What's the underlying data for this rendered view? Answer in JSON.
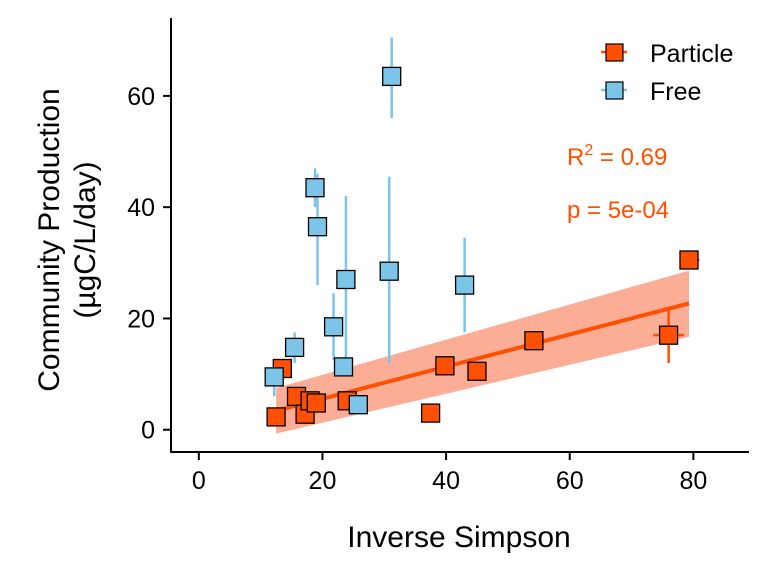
{
  "chart_data": {
    "type": "scatter",
    "xlabel": "Inverse Simpson",
    "ylabel_lines": [
      "Community Production",
      "(µgC/L/day)"
    ],
    "xlim": [
      -4.5,
      89
    ],
    "ylim": [
      -4,
      74
    ],
    "xticks": [
      0,
      20,
      40,
      60,
      80
    ],
    "yticks": [
      0,
      20,
      40,
      60
    ],
    "grid": false,
    "legend_position": "top-right",
    "colors": {
      "particle": "#FF4F00",
      "particle_band": "#FBA58A",
      "free": "#7CC5E8",
      "free_err": "#7CC5E8"
    },
    "series": [
      {
        "name": "Particle",
        "color": "#FF4F00",
        "points": [
          {
            "x": 12.5,
            "y": 2.3,
            "ylo": 2.3,
            "yhi": 2.3,
            "xlo": 12.5,
            "xhi": 12.5
          },
          {
            "x": 13.5,
            "y": 11.0,
            "ylo": 11.0,
            "yhi": 11.0,
            "xlo": 13.5,
            "xhi": 13.5
          },
          {
            "x": 15.8,
            "y": 6.0,
            "ylo": 6.0,
            "yhi": 6.0,
            "xlo": 15.8,
            "xhi": 15.8
          },
          {
            "x": 17.2,
            "y": 2.8,
            "ylo": 2.8,
            "yhi": 2.8,
            "xlo": 17.2,
            "xhi": 17.2
          },
          {
            "x": 18.0,
            "y": 5.2,
            "ylo": 5.2,
            "yhi": 5.2,
            "xlo": 18.0,
            "xhi": 18.0
          },
          {
            "x": 19.0,
            "y": 4.8,
            "ylo": 4.8,
            "yhi": 4.8,
            "xlo": 19.0,
            "xhi": 19.0
          },
          {
            "x": 24.0,
            "y": 5.2,
            "ylo": 5.2,
            "yhi": 5.2,
            "xlo": 24.0,
            "xhi": 24.0
          },
          {
            "x": 37.5,
            "y": 3.0,
            "ylo": 3.0,
            "yhi": 3.0,
            "xlo": 37.5,
            "xhi": 37.5
          },
          {
            "x": 39.8,
            "y": 11.5,
            "ylo": 11.5,
            "yhi": 11.5,
            "xlo": 39.8,
            "xhi": 39.8
          },
          {
            "x": 45.0,
            "y": 10.5,
            "ylo": 10.5,
            "yhi": 10.5,
            "xlo": 45.0,
            "xhi": 45.0
          },
          {
            "x": 54.2,
            "y": 16.0,
            "ylo": 16.0,
            "yhi": 16.0,
            "xlo": 54.2,
            "xhi": 54.2
          },
          {
            "x": 76.0,
            "y": 17.0,
            "ylo": 12.0,
            "yhi": 22.0,
            "xlo": 73.5,
            "xhi": 78.5
          },
          {
            "x": 79.3,
            "y": 30.5,
            "ylo": 30.5,
            "yhi": 30.5,
            "xlo": 78.0,
            "xhi": 81.0
          }
        ]
      },
      {
        "name": "Free",
        "color": "#7CC5E8",
        "points": [
          {
            "x": 12.2,
            "y": 9.5,
            "ylo": 6.0,
            "yhi": 10.0,
            "xlo": 12.2,
            "xhi": 12.2
          },
          {
            "x": 15.5,
            "y": 14.8,
            "ylo": 12.0,
            "yhi": 17.5,
            "xlo": 15.5,
            "xhi": 15.5
          },
          {
            "x": 18.8,
            "y": 43.5,
            "ylo": 40.0,
            "yhi": 47.0,
            "xlo": 18.8,
            "xhi": 18.8
          },
          {
            "x": 19.2,
            "y": 36.5,
            "ylo": 26.0,
            "yhi": 46.0,
            "xlo": 19.2,
            "xhi": 19.2
          },
          {
            "x": 21.8,
            "y": 18.5,
            "ylo": 12.5,
            "yhi": 24.5,
            "xlo": 21.8,
            "xhi": 21.8
          },
          {
            "x": 23.4,
            "y": 11.3,
            "ylo": 11.3,
            "yhi": 11.3,
            "xlo": 23.4,
            "xhi": 23.4
          },
          {
            "x": 23.8,
            "y": 27.0,
            "ylo": 10.0,
            "yhi": 42.0,
            "xlo": 23.8,
            "xhi": 23.8
          },
          {
            "x": 25.8,
            "y": 4.5,
            "ylo": 4.5,
            "yhi": 4.5,
            "xlo": 25.8,
            "xhi": 25.8
          },
          {
            "x": 30.8,
            "y": 28.5,
            "ylo": 12.0,
            "yhi": 45.5,
            "xlo": 30.8,
            "xhi": 30.8
          },
          {
            "x": 31.2,
            "y": 63.5,
            "ylo": 56.0,
            "yhi": 70.5,
            "xlo": 31.2,
            "xhi": 31.2
          },
          {
            "x": 43.0,
            "y": 26.0,
            "ylo": 17.5,
            "yhi": 34.5,
            "xlo": 43.0,
            "xhi": 43.0
          }
        ]
      }
    ],
    "fit": {
      "series": "Particle",
      "x": [
        12.5,
        79.3
      ],
      "y": [
        3.4,
        22.7
      ],
      "ci_lower": [
        -0.7,
        16.7
      ],
      "ci_upper": [
        7.5,
        28.6
      ],
      "r2_prefix": "R",
      "r2_sup": "2",
      "r2_value": " = 0.69",
      "p_text": "p = 5e-04"
    }
  }
}
